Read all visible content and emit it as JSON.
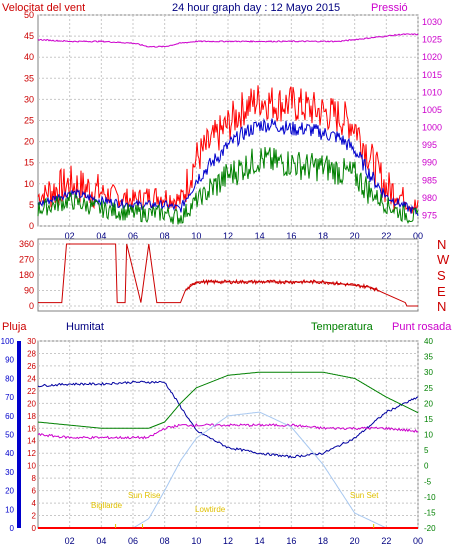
{
  "header": {
    "title": "24 hour graph day : 12 Mayo 2015",
    "left_label": "Velocitat del vent",
    "right_label": "Pressió"
  },
  "legend": {
    "rain": "Pluja",
    "humidity": "Humitat",
    "temperature": "Temperatura",
    "dewpoint": "Punt rosada"
  },
  "sun": {
    "first_light": "Bigllarde",
    "sunrise": "Sun Rise",
    "sunset": "Sun Set",
    "last_light": "Lowtirde"
  },
  "colors": {
    "wind_gust": "#ff0000",
    "wind_avg": "#0000cc",
    "wind_min": "#008000",
    "pressure": "#cc00cc",
    "direction": "#cc0000",
    "rain": "#ff0000",
    "humidity": "#0000a0",
    "temperature": "#008000",
    "dewpoint": "#cc00cc",
    "solar": "#a8c8f0",
    "sun_label": "#e0c000"
  },
  "chart_data": [
    {
      "type": "line",
      "title": "24 hour graph day : 12 Mayo 2015",
      "xlabel": "",
      "x_ticks": [
        "02",
        "04",
        "06",
        "08",
        "10",
        "12",
        "14",
        "16",
        "18",
        "20",
        "22",
        "00"
      ],
      "y_left": {
        "label": "Velocitat del vent",
        "ticks": [
          0,
          5,
          10,
          15,
          20,
          25,
          30,
          35,
          40,
          45,
          50
        ],
        "range": [
          0,
          50
        ]
      },
      "y_right": {
        "label": "Pressió",
        "ticks": [
          975,
          980,
          985,
          990,
          995,
          1000,
          1005,
          1010,
          1015,
          1020,
          1025,
          1030
        ],
        "range": [
          972,
          1032
        ]
      },
      "hours": [
        0,
        2,
        4,
        6,
        7,
        8,
        9,
        10,
        11,
        12,
        13,
        14,
        15,
        16,
        17,
        18,
        19,
        20,
        21,
        22,
        23,
        24
      ],
      "series": [
        {
          "key": "gust",
          "axis": "left",
          "values": [
            7,
            10,
            8,
            6,
            7,
            7,
            6,
            16,
            20,
            24,
            28,
            30,
            29,
            29,
            28,
            27,
            26,
            24,
            16,
            9,
            7,
            4
          ]
        },
        {
          "key": "avg",
          "axis": "left",
          "values": [
            5,
            8,
            6,
            5,
            5,
            5,
            4,
            11,
            15,
            19,
            22,
            24,
            24,
            23,
            23,
            22,
            21,
            18,
            12,
            7,
            5,
            3
          ]
        },
        {
          "key": "min",
          "axis": "left",
          "values": [
            4,
            6,
            4,
            3,
            3,
            3,
            2,
            6,
            9,
            12,
            14,
            16,
            15,
            15,
            14,
            14,
            13,
            12,
            8,
            5,
            3,
            2
          ]
        },
        {
          "key": "pressure",
          "axis": "right",
          "values": [
            1025,
            1024.5,
            1024.5,
            1024,
            1023,
            1023,
            1024,
            1024.5,
            1024.5,
            1024.5,
            1024.5,
            1024.5,
            1024.5,
            1024.5,
            1024.5,
            1024.5,
            1024.5,
            1025,
            1025.5,
            1026,
            1026.5,
            1026.5
          ]
        }
      ]
    },
    {
      "type": "line",
      "y_right_labels": [
        "N",
        "W",
        "S",
        "E",
        "N"
      ],
      "y_ticks": [
        0,
        90,
        180,
        270,
        360
      ],
      "range": [
        0,
        360
      ],
      "hours": [
        0,
        0.2,
        1.5,
        1.8,
        4.9,
        5.0,
        5.5,
        5.6,
        6.5,
        7.0,
        7.5,
        9.0,
        9.3,
        10,
        14,
        18,
        21,
        23.2,
        23.3,
        24
      ],
      "series": [
        {
          "key": "direction",
          "values": [
            20,
            20,
            20,
            360,
            360,
            20,
            20,
            360,
            20,
            360,
            20,
            20,
            90,
            140,
            140,
            140,
            110,
            20,
            0,
            0
          ]
        }
      ]
    },
    {
      "type": "line",
      "y_axes": {
        "humidity": {
          "label": "Humitat",
          "ticks": [
            0,
            10,
            20,
            30,
            40,
            50,
            60,
            70,
            80,
            90,
            100
          ],
          "range": [
            0,
            100
          ]
        },
        "rain": {
          "label": "Pluja",
          "ticks": [
            0,
            2,
            4,
            6,
            8,
            10,
            12,
            14,
            16,
            18,
            20,
            22,
            24,
            26,
            28,
            30
          ],
          "range": [
            0,
            30
          ]
        },
        "temperature": {
          "label": "Temperatura",
          "ticks": [
            -20,
            -15,
            -10,
            -5,
            0,
            5,
            10,
            15,
            20,
            25,
            30,
            35,
            40
          ],
          "range": [
            -20,
            40
          ]
        }
      },
      "hours": [
        0,
        2,
        4,
        6,
        7,
        8,
        9,
        10,
        12,
        14,
        16,
        18,
        20,
        22,
        24
      ],
      "series": [
        {
          "key": "humidity",
          "axis": "humidity",
          "values": [
            76,
            77,
            77,
            78,
            78,
            78,
            65,
            52,
            43,
            40,
            38,
            40,
            48,
            62,
            70
          ]
        },
        {
          "key": "temperature",
          "axis": "temperature",
          "values": [
            14,
            13,
            12,
            12,
            12,
            14,
            20,
            25,
            29,
            30,
            30,
            30,
            28,
            22,
            17
          ]
        },
        {
          "key": "dewpoint",
          "axis": "temperature",
          "values": [
            10,
            9,
            9,
            9,
            9,
            12,
            13,
            13,
            13,
            13,
            13,
            12,
            12,
            12,
            11
          ]
        },
        {
          "key": "solar",
          "axis": "humidity",
          "values": [
            0,
            0,
            0,
            0,
            5,
            20,
            36,
            48,
            60,
            62,
            54,
            34,
            8,
            0,
            0
          ]
        },
        {
          "key": "rain",
          "axis": "rain",
          "values": [
            0,
            0,
            0,
            0,
            0,
            0,
            0,
            0,
            0,
            0,
            0,
            0,
            0,
            0,
            0
          ]
        }
      ]
    }
  ]
}
